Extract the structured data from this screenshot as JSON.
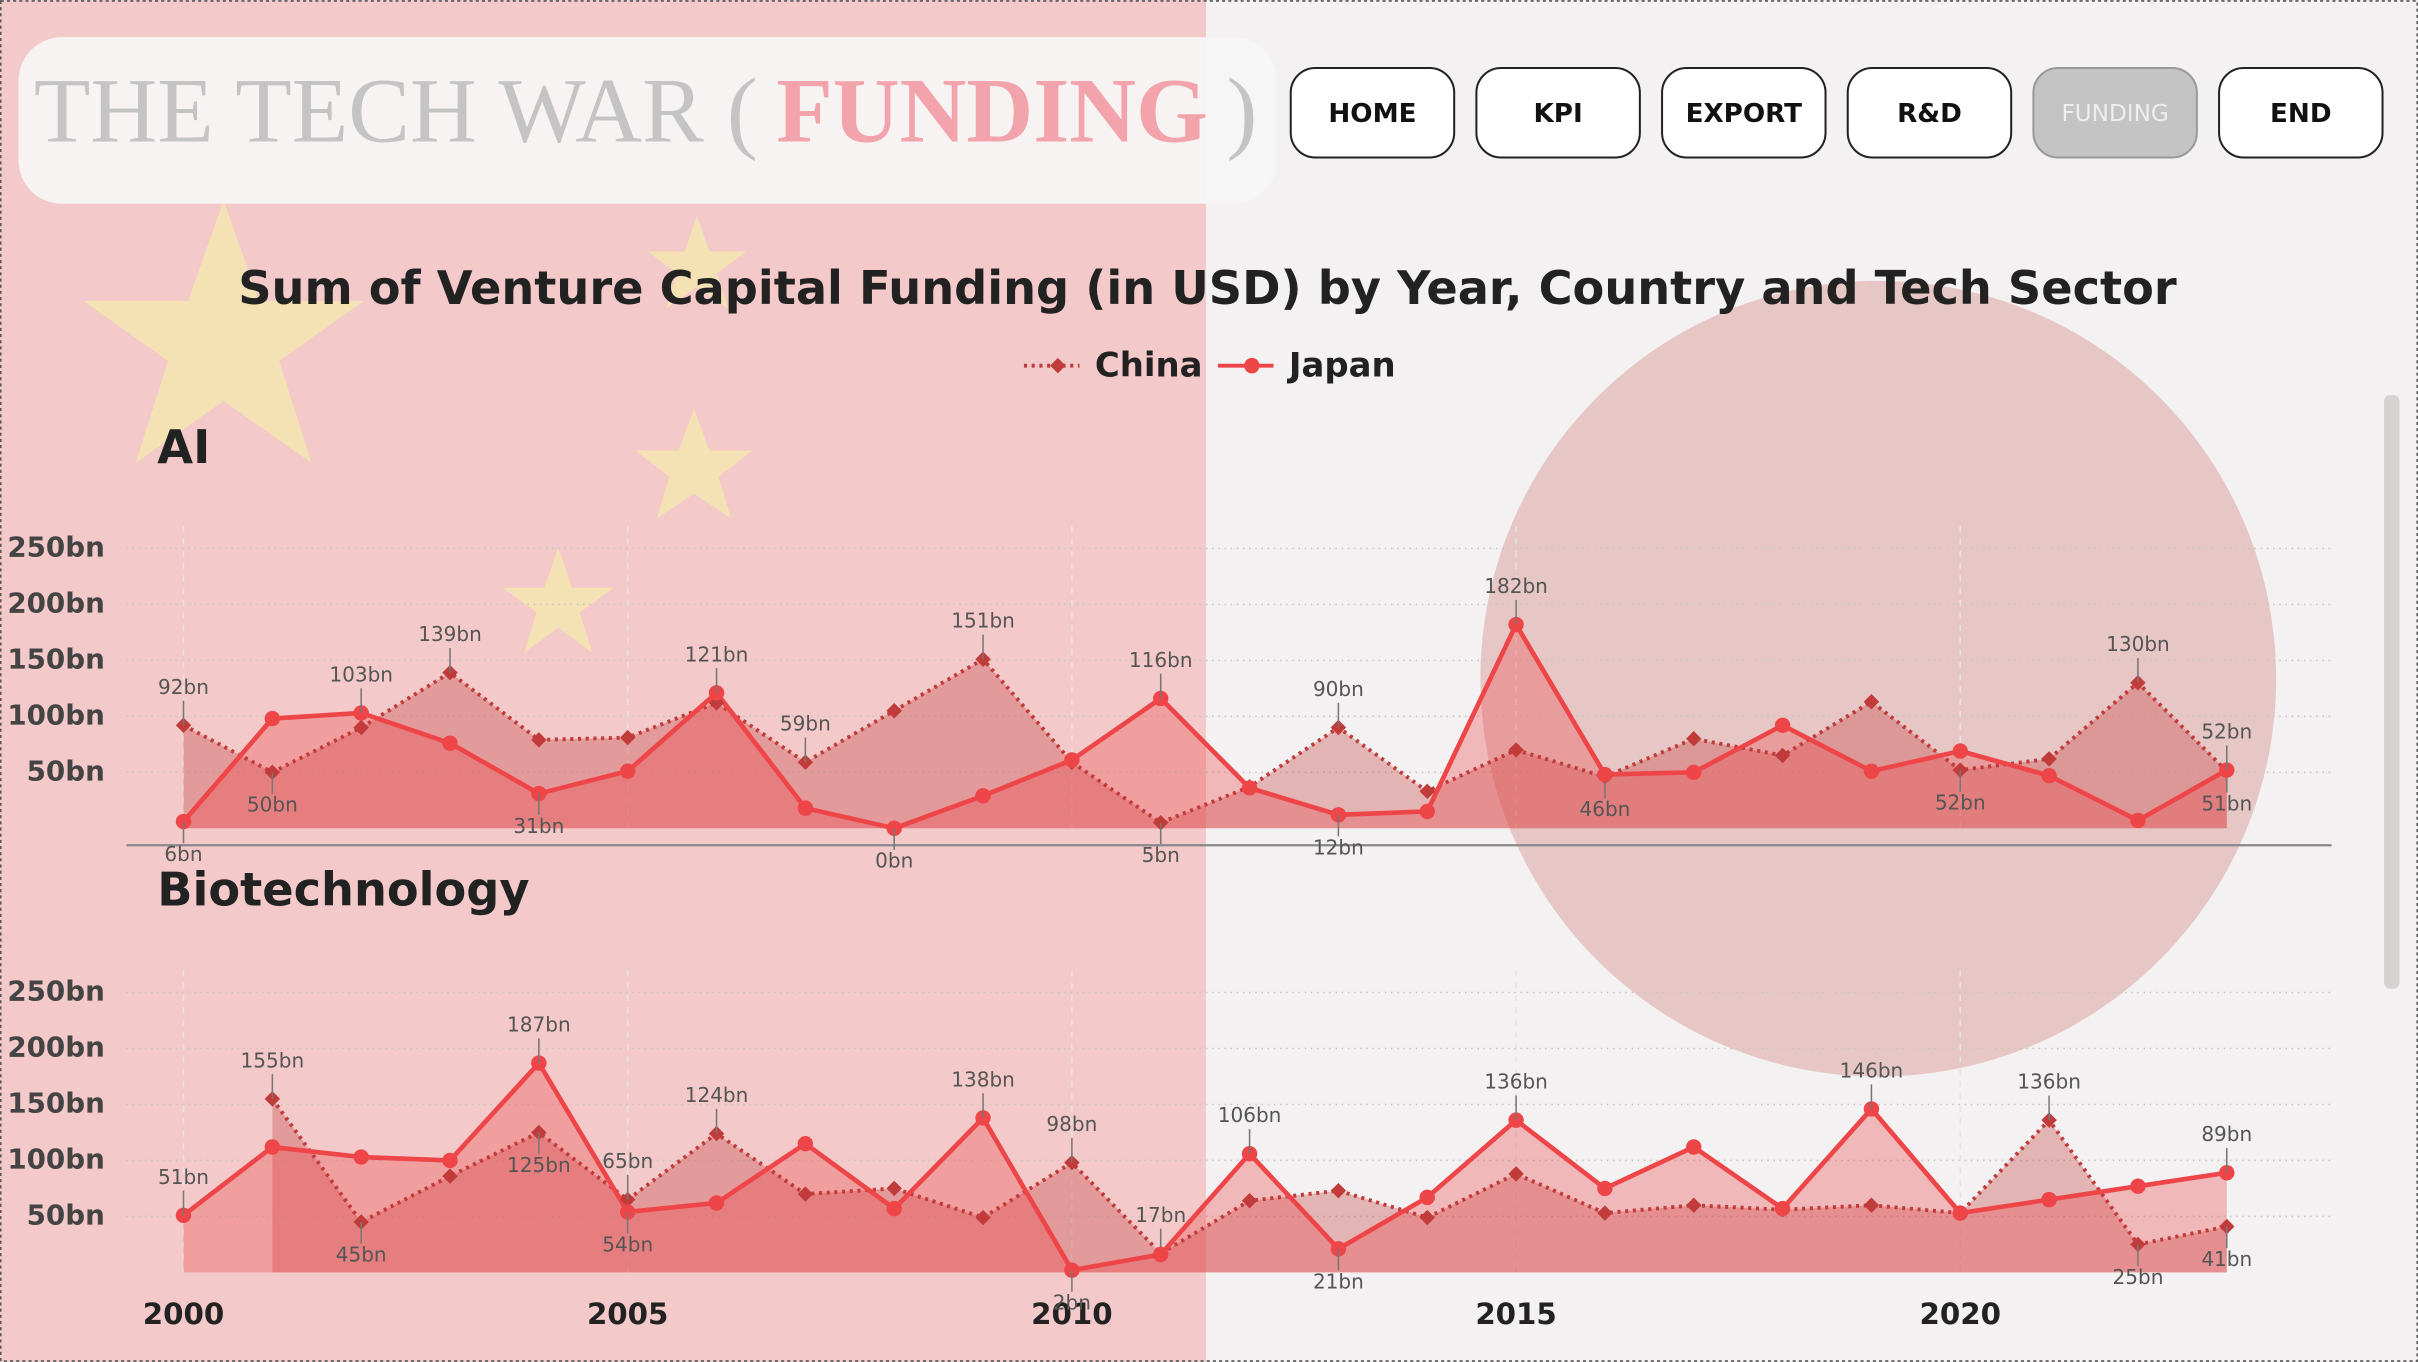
{
  "header": {
    "title_prefix": "THE TECH WAR (",
    "title_highlight": "FUNDING",
    "title_suffix": ")"
  },
  "nav": {
    "buttons": [
      "HOME",
      "KPI",
      "EXPORT",
      "R&D",
      "FUNDING",
      "END"
    ],
    "active": 4
  },
  "chart_data": [
    {
      "type": "line",
      "title": "Sum of Venture Capital Funding (in USD) by Year, Country and Tech Sector",
      "panel": "AI",
      "x": [
        2000,
        2001,
        2002,
        2003,
        2004,
        2005,
        2006,
        2007,
        2008,
        2009,
        2010,
        2011,
        2012,
        2013,
        2014,
        2015,
        2016,
        2017,
        2018,
        2019,
        2020,
        2021,
        2022,
        2023
      ],
      "xlim": [
        2000,
        2023
      ],
      "ylim": [
        0,
        270
      ],
      "yticks": [
        {
          "value": 50,
          "label": "50bn"
        },
        {
          "value": 100,
          "label": "100bn"
        },
        {
          "value": 150,
          "label": "150bn"
        },
        {
          "value": 200,
          "label": "200bn"
        },
        {
          "value": 250,
          "label": "250bn"
        }
      ],
      "grid": true,
      "series": [
        {
          "name": "China",
          "color": "#c23b3b",
          "line_style": "dotted",
          "marker": "diamond",
          "values": [
            92,
            50,
            90,
            139,
            79,
            81,
            112,
            59,
            105,
            151,
            59,
            5,
            37,
            90,
            33,
            70,
            46,
            80,
            65,
            113,
            52,
            62,
            130,
            51
          ],
          "value_labels": [
            "92bn",
            "50bn",
            null,
            "139bn",
            null,
            null,
            null,
            "59bn",
            null,
            "151bn",
            null,
            "5bn",
            null,
            "90bn",
            null,
            null,
            "46bn",
            null,
            null,
            null,
            "52bn",
            null,
            "130bn",
            "51bn"
          ]
        },
        {
          "name": "Japan",
          "color": "#ee4548",
          "line_style": "solid",
          "marker": "circle",
          "values": [
            6,
            98,
            103,
            76,
            31,
            51,
            121,
            18,
            0,
            29,
            61,
            116,
            36,
            12,
            15,
            182,
            48,
            50,
            92,
            51,
            69,
            47,
            7,
            52
          ],
          "value_labels": [
            "6bn",
            null,
            "103bn",
            null,
            "31bn",
            null,
            "121bn",
            null,
            "0bn",
            null,
            null,
            "116bn",
            null,
            "12bn",
            null,
            "182bn",
            null,
            null,
            null,
            null,
            null,
            null,
            null,
            "52bn"
          ]
        }
      ]
    },
    {
      "type": "line",
      "panel": "Biotechnology",
      "x": [
        2000,
        2001,
        2002,
        2003,
        2004,
        2005,
        2006,
        2007,
        2008,
        2009,
        2010,
        2011,
        2012,
        2013,
        2014,
        2015,
        2016,
        2017,
        2018,
        2019,
        2020,
        2021,
        2022,
        2023
      ],
      "xlim": [
        2000,
        2023
      ],
      "xticks": [
        2000,
        2005,
        2010,
        2015,
        2020
      ],
      "ylim": [
        0,
        270
      ],
      "yticks": [
        {
          "value": 50,
          "label": "50bn"
        },
        {
          "value": 100,
          "label": "100bn"
        },
        {
          "value": 150,
          "label": "150bn"
        },
        {
          "value": 200,
          "label": "200bn"
        },
        {
          "value": 250,
          "label": "250bn"
        }
      ],
      "grid": true,
      "series": [
        {
          "color": "#c23b3b",
          "line_style": "dotted",
          "marker": "diamond",
          "values": [
            null,
            155,
            45,
            86,
            125,
            65,
            124,
            70,
            75,
            49,
            98,
            17,
            64,
            73,
            49,
            88,
            53,
            60,
            56,
            60,
            53,
            136,
            25,
            41
          ],
          "value_labels": [
            null,
            "155bn",
            "45bn",
            null,
            "125bn",
            "65bn",
            "124bn",
            null,
            null,
            null,
            "98bn",
            "17bn",
            null,
            null,
            null,
            null,
            null,
            null,
            null,
            null,
            null,
            "136bn",
            "25bn",
            "41bn"
          ]
        },
        {
          "color": "#ee4548",
          "line_style": "solid",
          "marker": "circle",
          "values": [
            51,
            112,
            103,
            100,
            187,
            54,
            62,
            115,
            57,
            138,
            2,
            16,
            106,
            21,
            67,
            136,
            75,
            112,
            57,
            146,
            53,
            65,
            77,
            89
          ],
          "value_labels": [
            "51bn",
            null,
            null,
            null,
            "187bn",
            "54bn",
            null,
            null,
            null,
            "138bn",
            "2bn",
            null,
            "106bn",
            "21bn",
            null,
            "136bn",
            null,
            null,
            null,
            "146bn",
            null,
            null,
            null,
            "89bn"
          ]
        }
      ]
    }
  ]
}
